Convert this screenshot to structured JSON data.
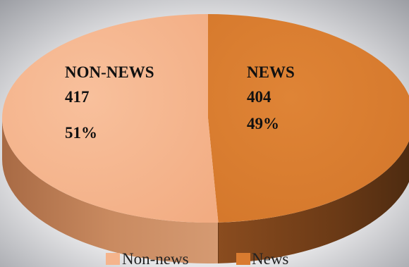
{
  "chart_data": {
    "type": "pie",
    "style": "3d",
    "categories": [
      "Non-news",
      "News"
    ],
    "values": [
      417,
      404
    ],
    "percents": [
      51,
      49
    ],
    "slice_labels": [
      {
        "name": "NON-NEWS",
        "value": "417",
        "percent": "51%"
      },
      {
        "name": "NEWS",
        "value": "404",
        "percent": "49%"
      }
    ],
    "legend": {
      "position": "bottom",
      "entries": [
        {
          "label": "Non-news",
          "color": "#f5b48c"
        },
        {
          "label": "News",
          "color": "#d97b2f"
        }
      ]
    },
    "colors": {
      "non_news_top": "#f5b48c",
      "non_news_side": "#b9764e",
      "news_top": "#d97b2f",
      "news_side": "#7a431c"
    }
  }
}
